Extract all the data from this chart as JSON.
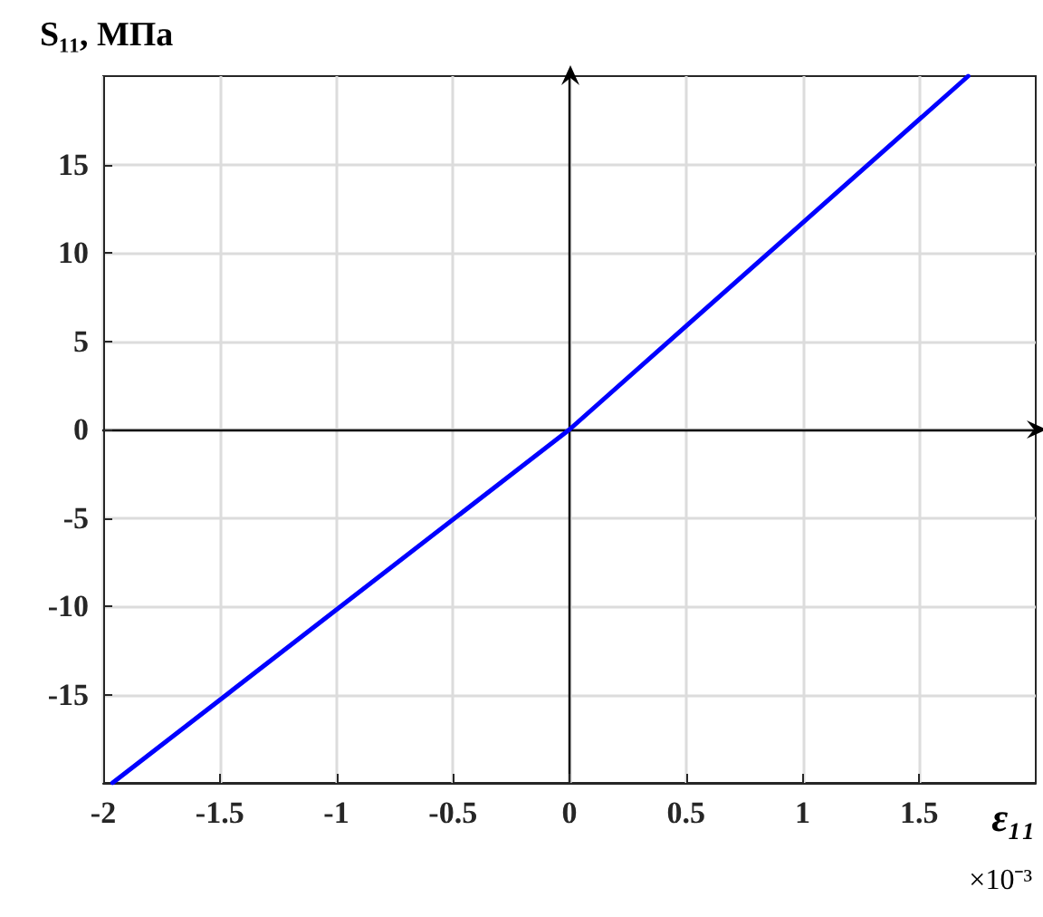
{
  "chart_data": {
    "type": "line",
    "xlabel": "ε₁₁",
    "ylabel": "S₁₁, МПа",
    "annotations": [
      "×10⁻³"
    ],
    "series": [
      {
        "color": "#0000ff",
        "x": [
          -1.96,
          0,
          1.71
        ],
        "values": [
          -20,
          0,
          20
        ]
      }
    ],
    "xlim": [
      -2,
      2
    ],
    "xticks": [
      -2,
      -1.5,
      -1,
      -0.5,
      0,
      0.5,
      1,
      1.5
    ],
    "ylim": [
      -20,
      20
    ],
    "yticks": [
      -15,
      -10,
      -5,
      0,
      5,
      10,
      15
    ],
    "grid": true,
    "marker": "none",
    "line_style": "solid"
  }
}
